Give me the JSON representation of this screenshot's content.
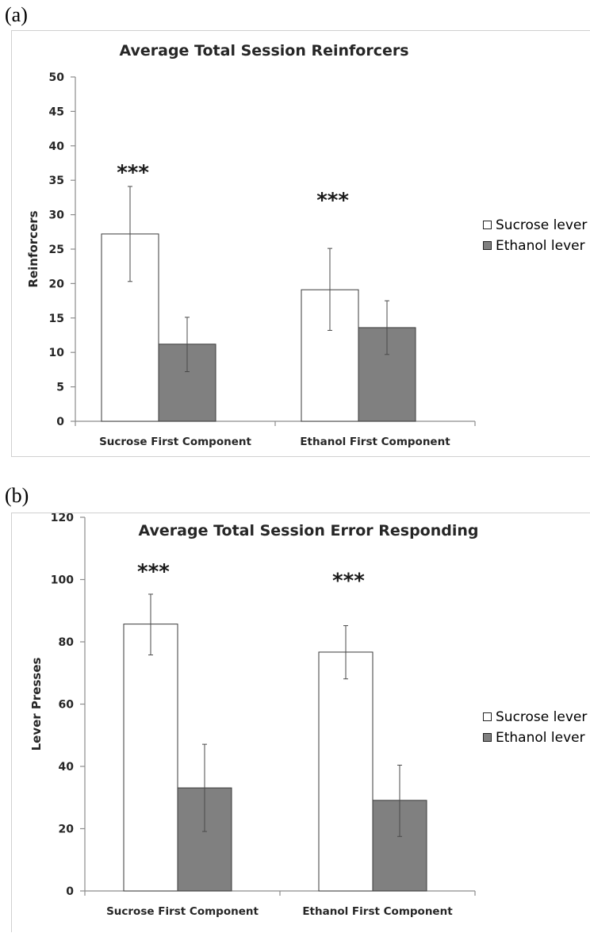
{
  "panels": [
    {
      "letter": "(a)"
    },
    {
      "letter": "(b)"
    }
  ],
  "colors": {
    "sucrose_fill": "#ffffff",
    "ethanol_fill": "#808080",
    "axis": "#8c8c8c"
  },
  "chart_data": [
    {
      "type": "bar",
      "title": "Average Total Session Reinforcers",
      "xlabel": "",
      "ylabel": "Reinforcers",
      "ylim": [
        0,
        50
      ],
      "yticks": [
        0,
        5,
        10,
        15,
        20,
        25,
        30,
        35,
        40,
        45,
        50
      ],
      "categories": [
        "Sucrose First Component",
        "Ethanol First Component"
      ],
      "series": [
        {
          "name": "Sucrose lever",
          "values": [
            27.2,
            19.1
          ],
          "error_low": [
            20.3,
            13.2
          ],
          "error_high": [
            34.1,
            25.1
          ]
        },
        {
          "name": "Ethanol lever",
          "values": [
            11.2,
            13.6
          ],
          "error_low": [
            7.2,
            9.7
          ],
          "error_high": [
            15.1,
            17.5
          ]
        }
      ],
      "annotations": [
        {
          "category": 0,
          "text": "***",
          "y": 36.5
        },
        {
          "category": 1,
          "text": "***",
          "y": 32.5
        }
      ],
      "legend": "right",
      "grid": false
    },
    {
      "type": "bar",
      "title": "Average Total Session Error Responding",
      "xlabel": "",
      "ylabel": "Lever Presses",
      "ylim": [
        0,
        120
      ],
      "yticks": [
        0,
        20,
        40,
        60,
        80,
        100,
        120
      ],
      "categories": [
        "Sucrose First Component",
        "Ethanol First Component"
      ],
      "series": [
        {
          "name": "Sucrose lever",
          "values": [
            85.7,
            76.7
          ],
          "error_low": [
            75.8,
            68.1
          ],
          "error_high": [
            95.3,
            85.2
          ]
        },
        {
          "name": "Ethanol lever",
          "values": [
            33.1,
            29.1
          ],
          "error_low": [
            19.1,
            17.5
          ],
          "error_high": [
            47.1,
            40.4
          ]
        }
      ],
      "annotations": [
        {
          "category": 0,
          "text": "***",
          "y": 103.5
        },
        {
          "category": 1,
          "text": "***",
          "y": 100.5
        }
      ],
      "legend": "right",
      "grid": false
    }
  ]
}
